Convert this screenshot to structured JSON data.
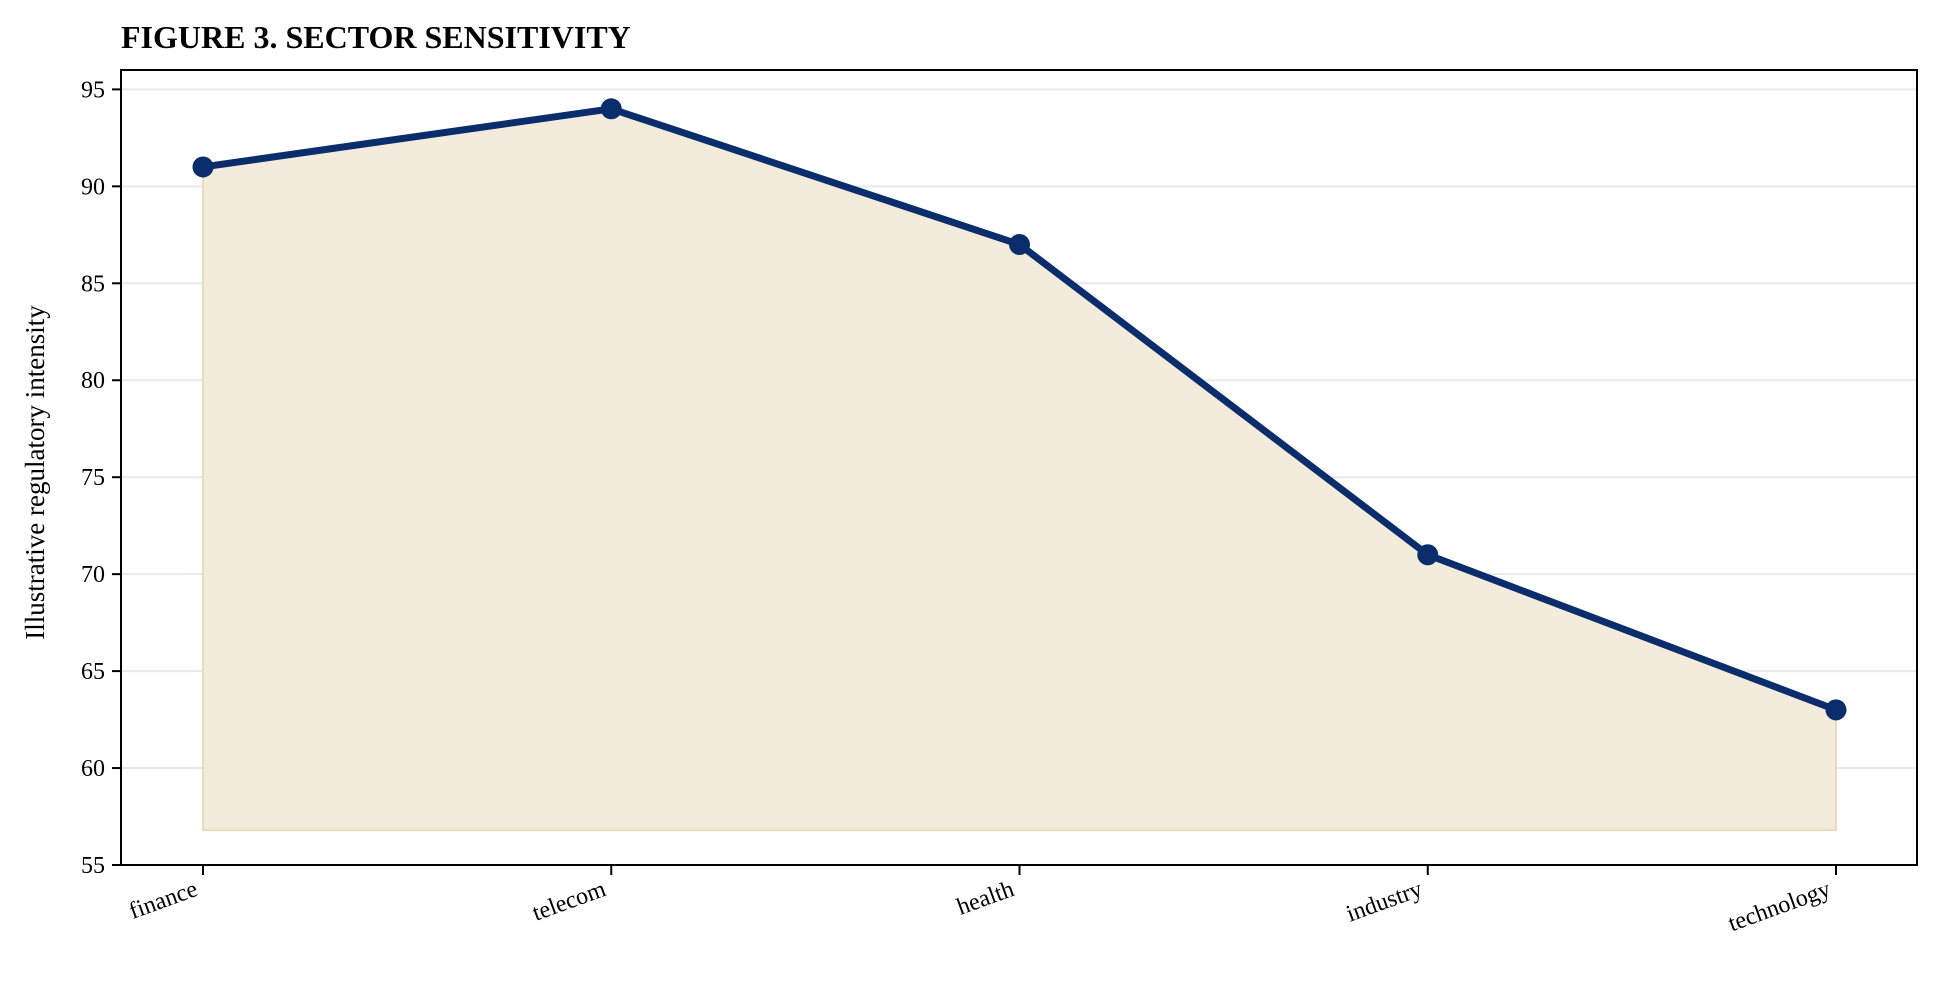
{
  "chart_data": {
    "type": "area",
    "title": "FIGURE 3. SECTOR SENSITIVITY",
    "xlabel": "",
    "ylabel": "Illustrative regulatory intensity",
    "categories": [
      "finance",
      "telecom",
      "health",
      "industry",
      "technology"
    ],
    "series": [
      {
        "values": [
          91,
          94,
          87,
          71,
          63
        ]
      }
    ],
    "ylim": [
      55,
      96
    ],
    "yticks": [
      55,
      60,
      65,
      70,
      75,
      80,
      85,
      90,
      95
    ],
    "fill_baseline": 56.8,
    "grid": "horizontal",
    "legend": "none",
    "colors": {
      "line": "#0b2d6b",
      "fill": "#f3ecdc",
      "fill_edge": "#e8dcbc",
      "grid": "#e9e9e9",
      "axis": "#000000"
    }
  }
}
